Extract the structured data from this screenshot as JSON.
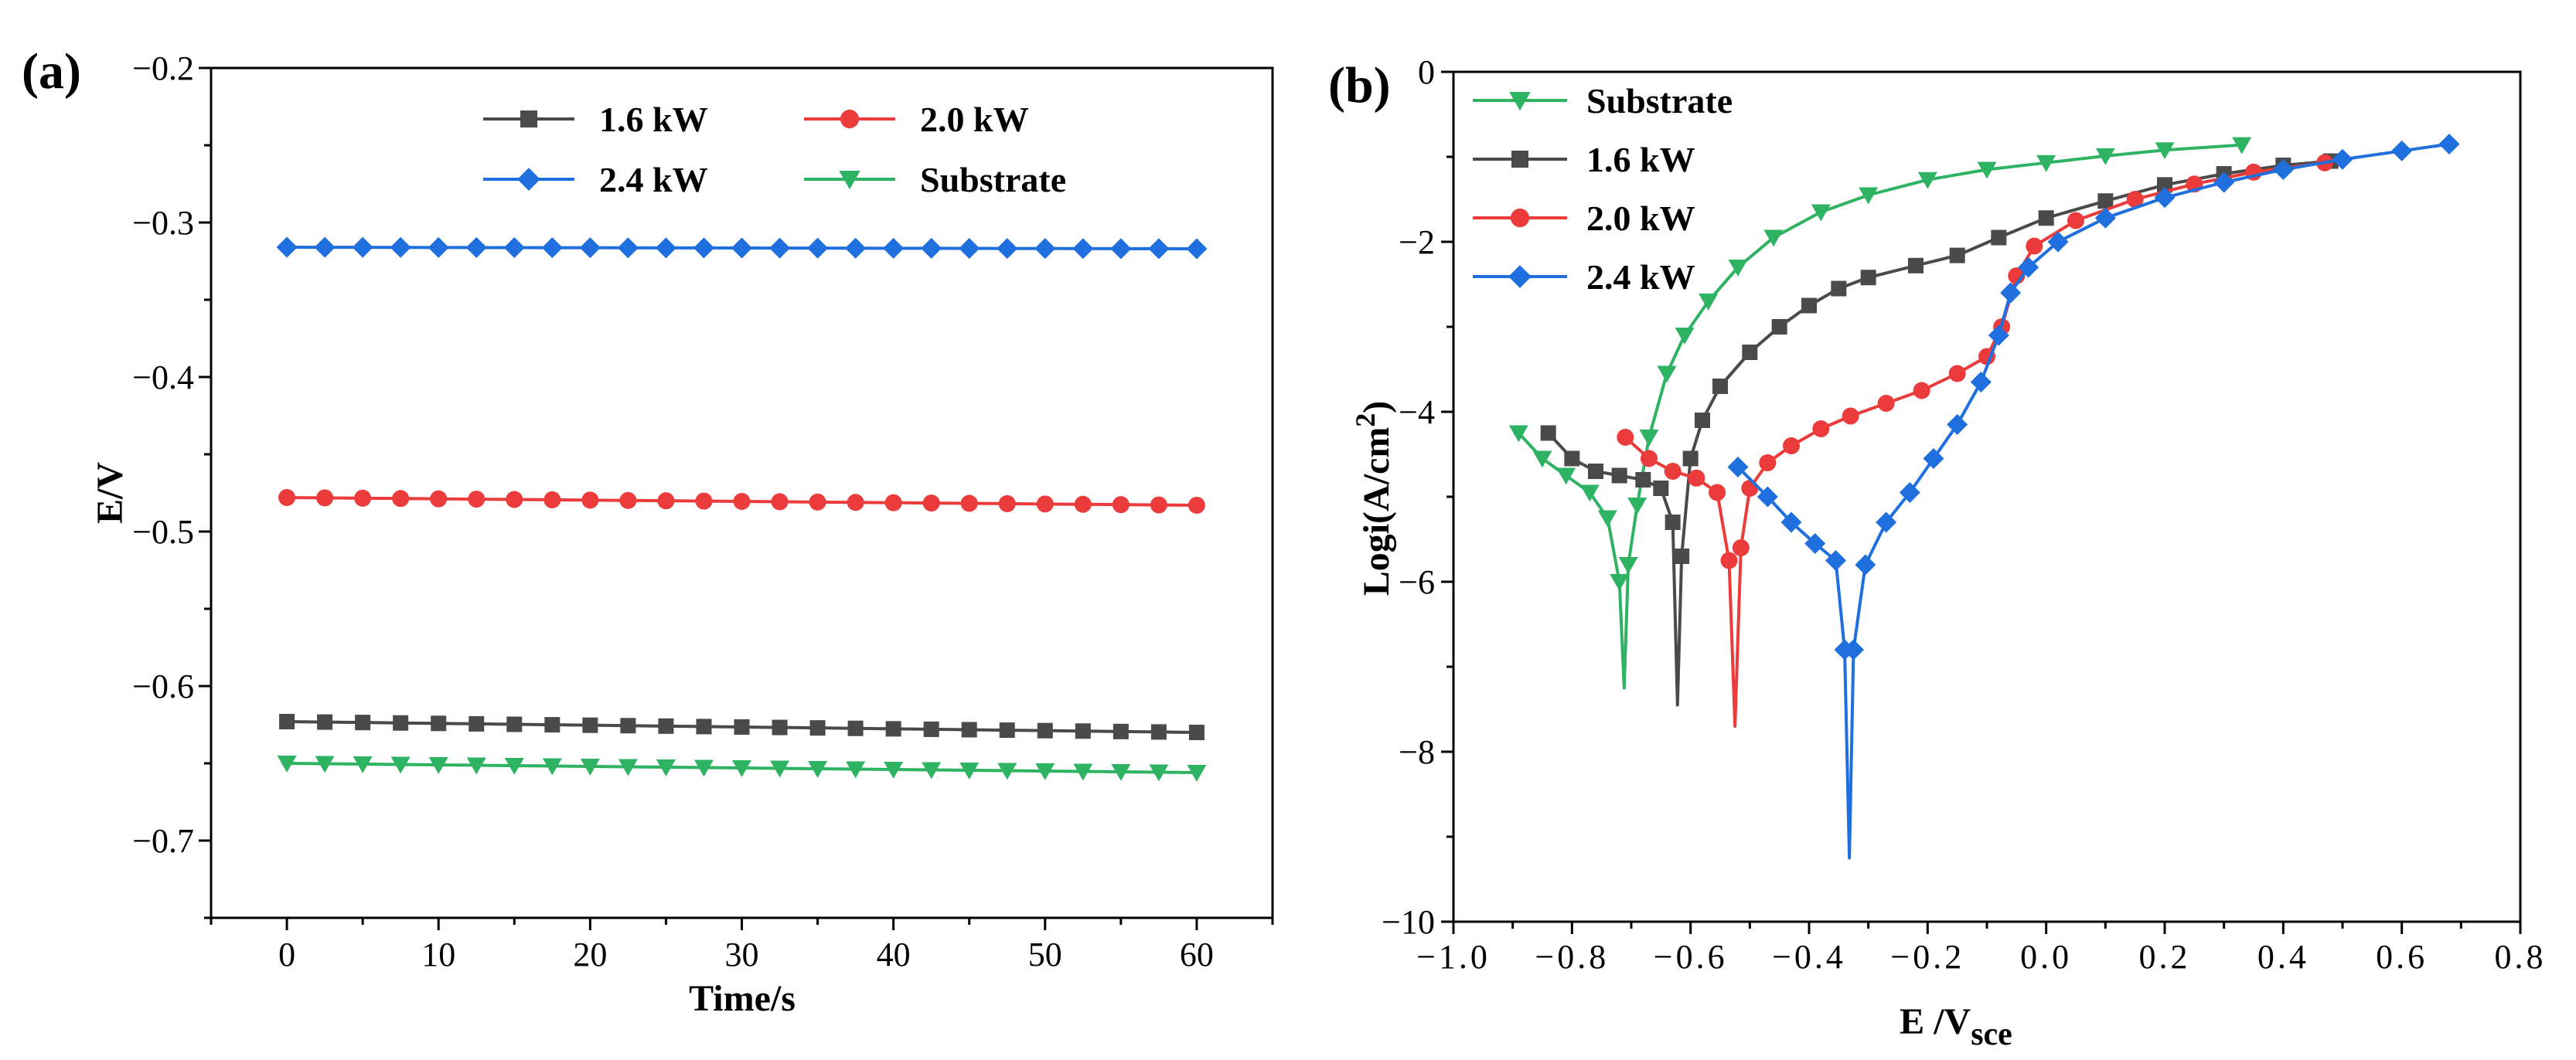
{
  "colors": {
    "black_series": "#4a4a4a",
    "red_series": "#ec3b3b",
    "blue_series": "#1f6fde",
    "green_series": "#2eb363",
    "axis": "#000000"
  },
  "chart_data": [
    {
      "panel_label": "(a)",
      "type": "line",
      "xlabel": "Time/s",
      "ylabel": "E/V",
      "xlim": [
        -5,
        65
      ],
      "ylim": [
        -0.75,
        -0.2
      ],
      "xticks": [
        0,
        10,
        20,
        30,
        40,
        50,
        60
      ],
      "yticks": [
        -0.2,
        -0.3,
        -0.4,
        -0.5,
        -0.6,
        -0.7
      ],
      "xtick_labels": [
        "0",
        "10",
        "20",
        "30",
        "40",
        "50",
        "60"
      ],
      "ytick_labels": [
        "−0.2",
        "−0.3",
        "−0.4",
        "−0.5",
        "−0.6",
        "−0.7"
      ],
      "legend_position": "top, two columns",
      "series": [
        {
          "name": "1.6 kW",
          "color": "#4a4a4a",
          "marker": "square",
          "start": -0.623,
          "end": -0.63
        },
        {
          "name": "2.0 kW",
          "color": "#ec3b3b",
          "marker": "circle",
          "start": -0.478,
          "end": -0.483
        },
        {
          "name": "2.4 kW",
          "color": "#1f6fde",
          "marker": "diamond",
          "start": -0.316,
          "end": -0.317
        },
        {
          "name": "Substrate",
          "color": "#2eb363",
          "marker": "triangle-down",
          "start": -0.65,
          "end": -0.656
        }
      ],
      "x_range": [
        0,
        60
      ],
      "x_step": 2.5
    },
    {
      "panel_label": "(b)",
      "type": "line",
      "xlabel": "E /V",
      "xlabel_subscript": "sce",
      "ylabel": "Logi(A/cm",
      "ylabel_superscript": "2",
      "ylabel_close": ")",
      "xlim": [
        -1.0,
        0.8
      ],
      "ylim": [
        -10,
        0
      ],
      "xticks": [
        -1.0,
        -0.8,
        -0.6,
        -0.4,
        -0.2,
        0.0,
        0.2,
        0.4,
        0.6,
        0.8
      ],
      "yticks": [
        0,
        -2,
        -4,
        -6,
        -8,
        -10
      ],
      "xtick_labels": [
        "−1.0",
        "−0.8",
        "−0.6",
        "−0.4",
        "−0.2",
        "0.0",
        "0.2",
        "0.4",
        "0.6",
        "0.8"
      ],
      "ytick_labels": [
        "0",
        "−2",
        "−4",
        "−6",
        "−8",
        "−10"
      ],
      "legend_position": "top-left",
      "series": [
        {
          "name": "Substrate",
          "color": "#2eb363",
          "marker": "triangle-down",
          "ecorr": -0.71,
          "cathodic": [
            [
              -0.89,
              -4.25
            ],
            [
              -0.85,
              -4.55
            ],
            [
              -0.81,
              -4.75
            ],
            [
              -0.77,
              -4.95
            ],
            [
              -0.74,
              -5.25
            ],
            [
              -0.72,
              -6.0
            ],
            [
              -0.712,
              -7.25
            ]
          ],
          "anodic": [
            [
              -0.712,
              -7.25
            ],
            [
              -0.705,
              -5.8
            ],
            [
              -0.69,
              -5.1
            ],
            [
              -0.67,
              -4.3
            ],
            [
              -0.64,
              -3.55
            ],
            [
              -0.61,
              -3.1
            ],
            [
              -0.57,
              -2.7
            ],
            [
              -0.52,
              -2.3
            ],
            [
              -0.46,
              -1.95
            ],
            [
              -0.38,
              -1.65
            ],
            [
              -0.3,
              -1.45
            ],
            [
              -0.2,
              -1.27
            ],
            [
              -0.1,
              -1.15
            ],
            [
              0.0,
              -1.07
            ],
            [
              0.1,
              -0.99
            ],
            [
              0.2,
              -0.92
            ],
            [
              0.33,
              -0.86
            ]
          ]
        },
        {
          "name": "1.6 kW",
          "color": "#4a4a4a",
          "marker": "square",
          "ecorr": -0.62,
          "cathodic": [
            [
              -0.84,
              -4.25
            ],
            [
              -0.8,
              -4.55
            ],
            [
              -0.76,
              -4.7
            ],
            [
              -0.72,
              -4.75
            ],
            [
              -0.68,
              -4.8
            ],
            [
              -0.65,
              -4.9
            ],
            [
              -0.63,
              -5.3
            ],
            [
              -0.622,
              -7.45
            ]
          ],
          "anodic": [
            [
              -0.622,
              -7.45
            ],
            [
              -0.615,
              -5.7
            ],
            [
              -0.6,
              -4.55
            ],
            [
              -0.58,
              -4.1
            ],
            [
              -0.55,
              -3.7
            ],
            [
              -0.5,
              -3.3
            ],
            [
              -0.45,
              -3.0
            ],
            [
              -0.4,
              -2.75
            ],
            [
              -0.35,
              -2.55
            ],
            [
              -0.3,
              -2.42
            ],
            [
              -0.22,
              -2.28
            ],
            [
              -0.15,
              -2.16
            ],
            [
              -0.08,
              -1.95
            ],
            [
              0.0,
              -1.72
            ],
            [
              0.1,
              -1.52
            ],
            [
              0.2,
              -1.33
            ],
            [
              0.3,
              -1.2
            ],
            [
              0.4,
              -1.1
            ],
            [
              0.48,
              -1.05
            ]
          ]
        },
        {
          "name": "2.0 kW",
          "color": "#ec3b3b",
          "marker": "circle",
          "ecorr": -0.52,
          "cathodic": [
            [
              -0.71,
              -4.3
            ],
            [
              -0.67,
              -4.55
            ],
            [
              -0.63,
              -4.7
            ],
            [
              -0.59,
              -4.78
            ],
            [
              -0.555,
              -4.95
            ],
            [
              -0.535,
              -5.75
            ],
            [
              -0.525,
              -7.7
            ]
          ],
          "anodic": [
            [
              -0.525,
              -7.7
            ],
            [
              -0.515,
              -5.6
            ],
            [
              -0.5,
              -4.9
            ],
            [
              -0.47,
              -4.6
            ],
            [
              -0.43,
              -4.4
            ],
            [
              -0.38,
              -4.2
            ],
            [
              -0.33,
              -4.05
            ],
            [
              -0.27,
              -3.9
            ],
            [
              -0.21,
              -3.75
            ],
            [
              -0.15,
              -3.55
            ],
            [
              -0.1,
              -3.35
            ],
            [
              -0.075,
              -3.0
            ],
            [
              -0.05,
              -2.4
            ],
            [
              -0.02,
              -2.05
            ],
            [
              0.05,
              -1.75
            ],
            [
              0.15,
              -1.5
            ],
            [
              0.25,
              -1.32
            ],
            [
              0.35,
              -1.18
            ],
            [
              0.47,
              -1.07
            ]
          ]
        },
        {
          "name": "2.4 kW",
          "color": "#1f6fde",
          "marker": "diamond",
          "ecorr": -0.33,
          "cathodic": [
            [
              -0.52,
              -4.65
            ],
            [
              -0.47,
              -5.0
            ],
            [
              -0.43,
              -5.3
            ],
            [
              -0.39,
              -5.55
            ],
            [
              -0.355,
              -5.75
            ],
            [
              -0.34,
              -6.8
            ],
            [
              -0.332,
              -9.25
            ]
          ],
          "anodic": [
            [
              -0.332,
              -9.25
            ],
            [
              -0.325,
              -6.8
            ],
            [
              -0.305,
              -5.8
            ],
            [
              -0.27,
              -5.3
            ],
            [
              -0.23,
              -4.95
            ],
            [
              -0.19,
              -4.55
            ],
            [
              -0.15,
              -4.15
            ],
            [
              -0.11,
              -3.65
            ],
            [
              -0.08,
              -3.1
            ],
            [
              -0.06,
              -2.6
            ],
            [
              -0.03,
              -2.3
            ],
            [
              0.02,
              -2.0
            ],
            [
              0.1,
              -1.72
            ],
            [
              0.2,
              -1.48
            ],
            [
              0.3,
              -1.3
            ],
            [
              0.4,
              -1.15
            ],
            [
              0.5,
              -1.03
            ],
            [
              0.6,
              -0.93
            ],
            [
              0.68,
              -0.85
            ]
          ]
        }
      ]
    }
  ]
}
